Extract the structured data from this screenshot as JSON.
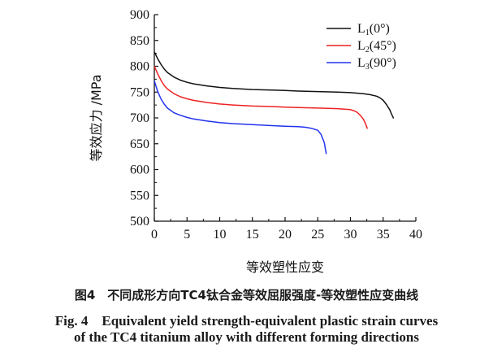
{
  "chart_data": {
    "type": "line",
    "xlabel": "等效塑性应变",
    "ylabel": "等效应力 /MPa",
    "xlim": [
      0,
      40
    ],
    "ylim": [
      500,
      900
    ],
    "xticks": [
      0,
      5,
      10,
      15,
      20,
      25,
      30,
      35,
      40
    ],
    "yticks": [
      500,
      550,
      600,
      650,
      700,
      750,
      800,
      850,
      900
    ],
    "grid": false,
    "legend_position": "top-right",
    "series": [
      {
        "name": "L1(0°)",
        "base": "L",
        "sub": "1",
        "suffix": "(0°)",
        "color": "#111111",
        "x": [
          0,
          0.5,
          1,
          1.5,
          2,
          3,
          4,
          5,
          6,
          8,
          10,
          12,
          15,
          18,
          20,
          22,
          25,
          28,
          30,
          32,
          33,
          34,
          34.5,
          35,
          35.5,
          36,
          36.3,
          36.6
        ],
        "y": [
          828,
          815,
          804,
          795,
          788,
          779,
          773,
          769,
          766,
          762,
          759,
          757,
          755,
          754,
          753,
          752,
          751,
          750,
          749,
          747,
          745,
          742,
          739,
          734,
          726,
          716,
          707,
          699
        ]
      },
      {
        "name": "L2(45°)",
        "base": "L",
        "sub": "2",
        "suffix": "(45°)",
        "color": "#ee2222",
        "x": [
          0,
          0.5,
          1,
          1.5,
          2,
          3,
          4,
          5,
          6,
          8,
          10,
          12,
          15,
          18,
          20,
          22,
          25,
          28,
          30,
          30.5,
          31,
          31.5,
          32,
          32.3,
          32.6
        ],
        "y": [
          800,
          786,
          773,
          763,
          756,
          747,
          741,
          737,
          734,
          730,
          727,
          725,
          723,
          722,
          721,
          720,
          719,
          718,
          716,
          714,
          711,
          705,
          697,
          689,
          679
        ]
      },
      {
        "name": "L3(90°)",
        "base": "L",
        "sub": "3",
        "suffix": "(90°)",
        "color": "#2233ee",
        "x": [
          0,
          0.5,
          1,
          1.5,
          2,
          3,
          4,
          5,
          6,
          8,
          10,
          12,
          15,
          18,
          20,
          22,
          23,
          24,
          25,
          25.5,
          26,
          26.3
        ],
        "y": [
          772,
          752,
          737,
          727,
          719,
          710,
          705,
          701,
          698,
          694,
          691,
          689,
          687,
          685,
          684,
          683,
          682,
          680,
          676,
          668,
          652,
          630
        ]
      }
    ]
  },
  "caption": {
    "cn": "图4　不同成形方向TC4钛合金等效屈服强度-等效塑性应变曲线",
    "en_line1": "Fig. 4　Equivalent yield strength-equivalent plastic strain curves",
    "en_line2": "of the TC4 titanium alloy with different forming directions"
  }
}
